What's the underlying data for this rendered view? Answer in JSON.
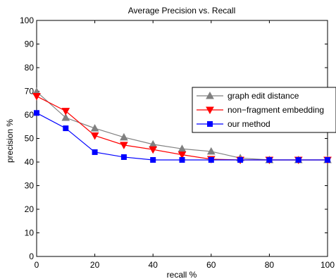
{
  "chart_data": {
    "type": "line",
    "title": "Average Precision vs. Recall",
    "xlabel": "recall %",
    "ylabel": "precision %",
    "xlim": [
      0,
      100
    ],
    "ylim": [
      0,
      100
    ],
    "x_ticks": [
      "0",
      "20",
      "40",
      "60",
      "80",
      "100"
    ],
    "y_ticks": [
      "0",
      "10",
      "20",
      "30",
      "40",
      "50",
      "60",
      "70",
      "80",
      "90",
      "100"
    ],
    "grid": false,
    "legend_position": "right",
    "x": [
      0,
      10,
      20,
      30,
      40,
      50,
      60,
      70,
      80,
      90,
      100
    ],
    "series": [
      {
        "name": "graph edit distance",
        "color": "#808080",
        "marker": "triangle-up",
        "values": [
          69.8,
          58.8,
          54.3,
          50.5,
          47.5,
          45.6,
          44.5,
          41.7,
          40.9,
          40.9,
          40.9
        ]
      },
      {
        "name": "non−fragment embedding",
        "color": "#ff0000",
        "marker": "triangle-down",
        "values": [
          67.9,
          61.6,
          51.2,
          47.2,
          45.3,
          43.1,
          41.2,
          40.9,
          40.9,
          40.9,
          40.9
        ]
      },
      {
        "name": "our method",
        "color": "#0000ff",
        "marker": "square",
        "values": [
          60.8,
          54.3,
          44.2,
          42.1,
          40.9,
          40.9,
          40.9,
          40.9,
          40.9,
          40.9,
          40.9
        ]
      }
    ]
  }
}
